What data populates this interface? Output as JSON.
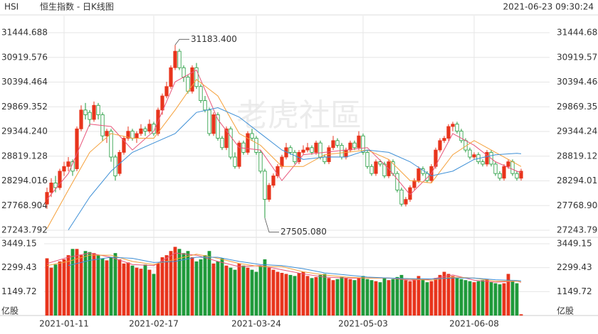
{
  "header": {
    "symbol": "HSI",
    "name": "恒生指数 - 日K线图",
    "timestamp": "2021-06-23 09:30:24"
  },
  "watermark": "老虎社區",
  "chart_data": [
    {
      "type": "candlestick",
      "up_color": "#e8341c",
      "down_color": "#1f9a3a",
      "ylim": [
        27243.792,
        31444.688
      ],
      "yticks": [
        27243.792,
        27768.904,
        28294.016,
        28819.128,
        {
          "value": 29344.24,
          "label": "29344.240"
        },
        29869.352,
        30394.464,
        30919.576,
        31444.688
      ],
      "grid": true,
      "categories": [
        null,
        null,
        null,
        null,
        "2021-01-11",
        null,
        null,
        null,
        null,
        null,
        null,
        null,
        null,
        null,
        null,
        null,
        null,
        null,
        null,
        null,
        null,
        null,
        null,
        null,
        null,
        "2021-02-17",
        null,
        null,
        null,
        null,
        null,
        null,
        null,
        null,
        null,
        null,
        null,
        null,
        null,
        null,
        null,
        null,
        null,
        null,
        null,
        null,
        null,
        null,
        null,
        "2021-03-24",
        null,
        null,
        null,
        null,
        null,
        null,
        null,
        null,
        null,
        null,
        null,
        null,
        null,
        null,
        null,
        null,
        null,
        null,
        null,
        null,
        null,
        null,
        null,
        null,
        "2021-05-03",
        null,
        null,
        null,
        null,
        null,
        null,
        null,
        null,
        null,
        null,
        null,
        null,
        null,
        null,
        null,
        null,
        null,
        null,
        null,
        null,
        null,
        null,
        null,
        null,
        null,
        "2021-06-08",
        null,
        null,
        null,
        null,
        null,
        null,
        null,
        null,
        null,
        null,
        null
      ],
      "candles": [
        [
          27800,
          28150,
          27700,
          28050
        ],
        [
          28050,
          28350,
          27950,
          28250
        ],
        [
          28250,
          28400,
          28050,
          28150
        ],
        [
          28150,
          28550,
          28100,
          28500
        ],
        [
          28500,
          28700,
          28400,
          28600
        ],
        [
          28600,
          28800,
          28500,
          28700
        ],
        [
          28700,
          28750,
          28400,
          28500
        ],
        [
          28550,
          29450,
          28500,
          29400
        ],
        [
          29400,
          29900,
          29350,
          29800
        ],
        [
          29800,
          29950,
          29600,
          29700
        ],
        [
          29750,
          29800,
          29450,
          29600
        ],
        [
          29600,
          29980,
          29550,
          29900
        ],
        [
          29900,
          29950,
          29600,
          29700
        ],
        [
          29700,
          29750,
          29150,
          29250
        ],
        [
          29250,
          29400,
          29100,
          29350
        ],
        [
          29350,
          29400,
          28700,
          28800
        ],
        [
          28800,
          28850,
          28300,
          28400
        ],
        [
          28450,
          28950,
          28400,
          28900
        ],
        [
          28900,
          29250,
          28850,
          29200
        ],
        [
          29200,
          29450,
          29150,
          29350
        ],
        [
          29350,
          29400,
          29150,
          29200
        ],
        [
          29200,
          29350,
          29100,
          29300
        ],
        [
          29300,
          29500,
          29250,
          29400
        ],
        [
          29400,
          29450,
          29250,
          29350
        ],
        [
          29350,
          29600,
          29300,
          29500
        ],
        [
          29500,
          29550,
          29250,
          29300
        ],
        [
          29300,
          29850,
          29250,
          29800
        ],
        [
          29800,
          30150,
          29700,
          30100
        ],
        [
          30100,
          30400,
          30050,
          30300
        ],
        [
          30300,
          30750,
          30250,
          30700
        ],
        [
          30700,
          31183.4,
          30650,
          31050
        ],
        [
          31050,
          31100,
          30650,
          30700
        ],
        [
          30700,
          30750,
          30400,
          30500
        ],
        [
          30500,
          30550,
          30150,
          30200
        ],
        [
          30200,
          30750,
          30150,
          30700
        ],
        [
          30700,
          30800,
          30250,
          30300
        ],
        [
          30300,
          30350,
          29950,
          30000
        ],
        [
          30000,
          30100,
          29750,
          29800
        ],
        [
          29800,
          29850,
          29250,
          29300
        ],
        [
          29300,
          29750,
          29250,
          29700
        ],
        [
          29700,
          29750,
          29150,
          29200
        ],
        [
          29200,
          29250,
          28950,
          29000
        ],
        [
          29000,
          29450,
          28950,
          29400
        ],
        [
          29400,
          29450,
          28750,
          28800
        ],
        [
          28800,
          28900,
          28550,
          28600
        ],
        [
          28600,
          29150,
          28550,
          29100
        ],
        [
          29100,
          29150,
          28850,
          28900
        ],
        [
          28900,
          29350,
          28850,
          29300
        ],
        [
          29300,
          29400,
          29150,
          29200
        ],
        [
          29200,
          29250,
          28850,
          28900
        ],
        [
          28900,
          28950,
          28450,
          28500
        ],
        [
          28500,
          28550,
          27505.08,
          27900
        ],
        [
          27900,
          28250,
          27850,
          28200
        ],
        [
          28200,
          28450,
          28150,
          28400
        ],
        [
          28400,
          28650,
          28350,
          28600
        ],
        [
          28600,
          28850,
          28550,
          28800
        ],
        [
          28800,
          29100,
          28750,
          29000
        ],
        [
          29000,
          29050,
          28850,
          28900
        ],
        [
          28900,
          28950,
          28650,
          28700
        ],
        [
          28700,
          28950,
          28650,
          28900
        ],
        [
          28900,
          29050,
          28850,
          28950
        ],
        [
          28950,
          29100,
          28900,
          29000
        ],
        [
          29000,
          29050,
          28850,
          28900
        ],
        [
          28900,
          29150,
          28850,
          29100
        ],
        [
          29100,
          29150,
          28750,
          28800
        ],
        [
          28800,
          28850,
          28650,
          28700
        ],
        [
          28700,
          29050,
          28650,
          29000
        ],
        [
          29000,
          29250,
          28950,
          29150
        ],
        [
          29150,
          29200,
          29000,
          29050
        ],
        [
          29050,
          29100,
          28750,
          28800
        ],
        [
          28800,
          29000,
          28750,
          28950
        ],
        [
          28950,
          29150,
          28900,
          29100
        ],
        [
          29100,
          29150,
          28950,
          29000
        ],
        [
          29000,
          29350,
          28950,
          29250
        ],
        [
          29250,
          29300,
          28850,
          28900
        ],
        [
          28900,
          28950,
          28550,
          28600
        ],
        [
          28600,
          28650,
          28400,
          28450
        ],
        [
          28450,
          28750,
          28400,
          28700
        ],
        [
          28700,
          28750,
          28600,
          28650
        ],
        [
          28650,
          28700,
          28350,
          28400
        ],
        [
          28400,
          28750,
          28350,
          28700
        ],
        [
          28700,
          28750,
          28400,
          28450
        ],
        [
          28450,
          28500,
          28050,
          28100
        ],
        [
          28100,
          28150,
          27750,
          27800
        ],
        [
          27800,
          27950,
          27750,
          27900
        ],
        [
          27900,
          28200,
          27850,
          28150
        ],
        [
          28150,
          28350,
          28100,
          28300
        ],
        [
          28300,
          28600,
          28250,
          28550
        ],
        [
          28550,
          28600,
          28400,
          28450
        ],
        [
          28450,
          28500,
          28250,
          28300
        ],
        [
          28300,
          28650,
          28250,
          28600
        ],
        [
          28600,
          29000,
          28550,
          28950
        ],
        [
          28950,
          29200,
          28900,
          29150
        ],
        [
          29150,
          29250,
          29100,
          29200
        ],
        [
          29200,
          29500,
          29150,
          29450
        ],
        [
          29450,
          29550,
          29350,
          29500
        ],
        [
          29500,
          29550,
          29300,
          29350
        ],
        [
          29350,
          29400,
          29100,
          29150
        ],
        [
          29150,
          29200,
          28900,
          28950
        ],
        [
          28950,
          29000,
          28750,
          28800
        ],
        [
          28800,
          28900,
          28750,
          28850
        ],
        [
          28850,
          28900,
          28650,
          28700
        ],
        [
          28700,
          28750,
          28600,
          28650
        ],
        [
          28650,
          28950,
          28600,
          28900
        ],
        [
          28900,
          28950,
          28600,
          28650
        ],
        [
          28650,
          28700,
          28400,
          28450
        ],
        [
          28450,
          28500,
          28300,
          28350
        ],
        [
          28350,
          28650,
          28300,
          28600
        ],
        [
          28600,
          28750,
          28550,
          28700
        ],
        [
          28700,
          28750,
          28400,
          28450
        ],
        [
          28450,
          28500,
          28300,
          28350
        ],
        [
          28350,
          28550,
          28300,
          28500
        ]
      ],
      "lines": [
        {
          "color": "#e8557a",
          "x": [
            0,
            5,
            10,
            15,
            20,
            25,
            30,
            35,
            40,
            45,
            50,
            55,
            60,
            65,
            70,
            75,
            80,
            85,
            90,
            95,
            100,
            105,
            110,
            111
          ],
          "values": [
            27900,
            28450,
            29500,
            29450,
            28950,
            29350,
            30400,
            30650,
            29600,
            29000,
            28950,
            28300,
            28850,
            28900,
            28950,
            29000,
            28550,
            28000,
            28450,
            29300,
            29050,
            28700,
            28500,
            28470
          ]
        },
        {
          "color": "#f5a03a",
          "x": [
            0,
            5,
            10,
            15,
            20,
            25,
            30,
            35,
            40,
            45,
            50,
            55,
            60,
            65,
            70,
            75,
            80,
            85,
            90,
            95,
            100,
            105,
            110,
            111
          ],
          "values": [
            27280,
            28100,
            28900,
            29300,
            29200,
            29200,
            29800,
            30450,
            30100,
            29300,
            29050,
            28600,
            28600,
            28850,
            28900,
            28950,
            28750,
            28300,
            28250,
            28850,
            29150,
            28900,
            28650,
            28600
          ]
        },
        {
          "color": "#3d8fd6",
          "x": [
            0,
            5,
            10,
            15,
            20,
            25,
            30,
            35,
            40,
            45,
            50,
            55,
            60,
            65,
            70,
            75,
            80,
            85,
            90,
            95,
            100,
            105,
            110,
            111
          ],
          "values": [
            null,
            27250,
            27950,
            28500,
            28900,
            29100,
            29300,
            29750,
            29850,
            29650,
            29300,
            28950,
            28750,
            28800,
            28800,
            28950,
            28900,
            28700,
            28400,
            28500,
            28750,
            28850,
            28880,
            28870
          ]
        }
      ],
      "annotations": [
        {
          "value": 31183.4,
          "label": "31183.400"
        },
        {
          "value": 27505.08,
          "label": "27505.080"
        }
      ]
    },
    {
      "type": "volume",
      "unit_label": "亿股",
      "up_color": "#e8341c",
      "down_color": "#1f9a3a",
      "ylim": [
        0,
        3449.15
      ],
      "yticks": [
        1149.72,
        2299.43,
        3449.15
      ],
      "values": [
        2750,
        2300,
        2450,
        2600,
        2700,
        2900,
        3200,
        3200,
        2900,
        3100,
        3050,
        3000,
        2900,
        2750,
        2650,
        2800,
        3000,
        2700,
        2500,
        2550,
        2400,
        2300,
        2250,
        2450,
        2200,
        2000,
        2500,
        2800,
        2900,
        3100,
        3300,
        3200,
        3000,
        3100,
        2800,
        2600,
        2700,
        2900,
        3100,
        2500,
        2600,
        2750,
        2400,
        2300,
        2200,
        2500,
        2400,
        2300,
        2200,
        2100,
        2400,
        2700,
        2300,
        2200,
        2100,
        2050,
        2000,
        1950,
        1900,
        2050,
        2100,
        1900,
        1800,
        1850,
        1950,
        2000,
        1800,
        1700,
        1750,
        1850,
        1800,
        1750,
        1700,
        1800,
        1900,
        1750,
        1700,
        1650,
        1600,
        1800,
        1700,
        1750,
        1850,
        1950,
        1700,
        1650,
        1700,
        1900,
        1750,
        1600,
        1650,
        1800,
        1950,
        2100,
        2000,
        1900,
        1800,
        1750,
        1700,
        1650,
        1600,
        1650,
        1700,
        1750,
        1600,
        1550,
        1500,
        1550,
        2000,
        1650,
        1550,
        60
      ],
      "lines": [
        {
          "color": "#e8557a",
          "x": [
            0,
            5,
            10,
            15,
            20,
            25,
            30,
            35,
            40,
            45,
            50,
            55,
            60,
            65,
            70,
            75,
            80,
            85,
            90,
            95,
            100,
            105,
            110,
            111
          ],
          "values": [
            2500,
            2800,
            3000,
            2800,
            2450,
            2400,
            3000,
            2900,
            2600,
            2350,
            2400,
            2200,
            2000,
            1850,
            1800,
            1800,
            1800,
            1700,
            1750,
            1950,
            1700,
            1600,
            1650,
            1600
          ]
        },
        {
          "color": "#f5a03a",
          "x": [
            0,
            5,
            10,
            15,
            20,
            25,
            30,
            35,
            40,
            45,
            50,
            55,
            60,
            65,
            70,
            75,
            80,
            85,
            90,
            95,
            100,
            105,
            110,
            111
          ],
          "values": [
            2400,
            2600,
            2900,
            2900,
            2600,
            2450,
            2700,
            2950,
            2750,
            2500,
            2350,
            2350,
            2100,
            1950,
            1850,
            1800,
            1800,
            1750,
            1700,
            1850,
            1800,
            1650,
            1650,
            1620
          ]
        },
        {
          "color": "#3d8fd6",
          "x": [
            0,
            5,
            10,
            15,
            20,
            25,
            30,
            35,
            40,
            45,
            50,
            55,
            60,
            65,
            70,
            75,
            80,
            85,
            90,
            95,
            100,
            105,
            110,
            111
          ],
          "values": [
            null,
            2400,
            2650,
            2800,
            2750,
            2550,
            2600,
            2800,
            2800,
            2600,
            2450,
            2400,
            2250,
            2050,
            1950,
            1850,
            1800,
            1770,
            1760,
            1800,
            1800,
            1720,
            1680,
            1670
          ]
        }
      ]
    }
  ]
}
